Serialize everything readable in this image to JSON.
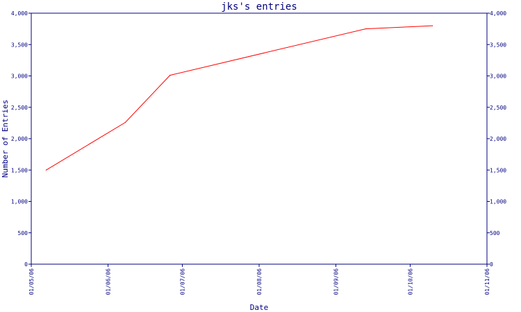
{
  "chart_data": {
    "type": "line",
    "title": "jks's entries",
    "xlabel": "Date",
    "ylabel": "Number of Entries",
    "x_tick_labels": [
      "01/05/06",
      "01/06/06",
      "01/07/06",
      "01/08/06",
      "01/09/06",
      "01/10/06",
      "01/11/06"
    ],
    "y_tick_labels": [
      "0",
      "500",
      "1,000",
      "1,500",
      "2,000",
      "2,500",
      "3,000",
      "3,500",
      "4,000"
    ],
    "ylim": [
      0,
      4000
    ],
    "xlim": [
      "2006-05-01",
      "2006-11-01"
    ],
    "grid": false,
    "series": [
      {
        "x": [
          "2006-05-07",
          "2006-06-08",
          "2006-06-26",
          "2006-09-13",
          "2006-10-10"
        ],
        "y": [
          1500,
          2260,
          3010,
          3750,
          3800
        ]
      }
    ],
    "colors": {
      "line": "#ff0000",
      "axes": "#000080",
      "text": "#000080"
    }
  }
}
